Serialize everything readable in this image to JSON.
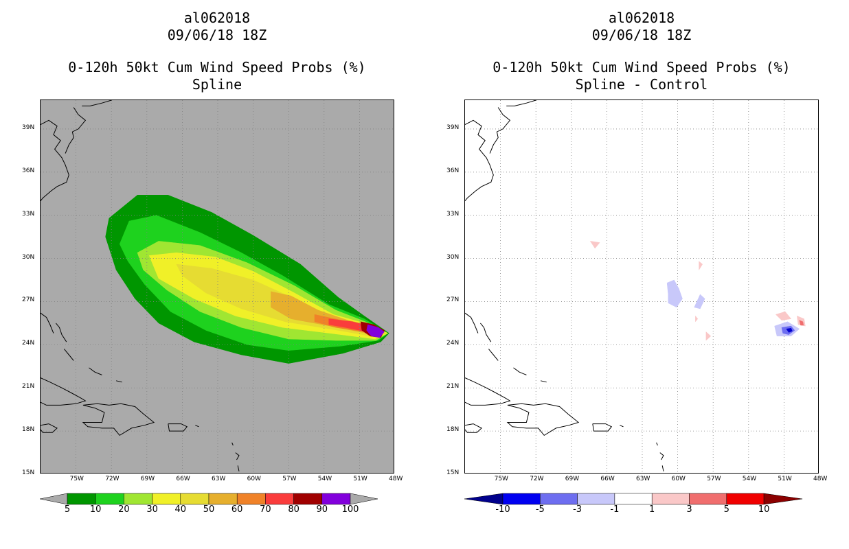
{
  "chart_data": [
    {
      "type": "heatmap",
      "storm_id": "al062018",
      "datetime": "09/06/18 18Z",
      "title": "0-120h 50kt Cum Wind Speed Probs (%)",
      "subtitle": "Spline",
      "background_color": "#aaaaaa",
      "xlim": [
        -78,
        -48
      ],
      "ylim": [
        15,
        41
      ],
      "x_ticks": [
        {
          "value": -75,
          "label": "75W"
        },
        {
          "value": -72,
          "label": "72W"
        },
        {
          "value": -69,
          "label": "69W"
        },
        {
          "value": -66,
          "label": "66W"
        },
        {
          "value": -63,
          "label": "63W"
        },
        {
          "value": -60,
          "label": "60W"
        },
        {
          "value": -57,
          "label": "57W"
        },
        {
          "value": -54,
          "label": "54W"
        },
        {
          "value": -51,
          "label": "51W"
        },
        {
          "value": -48,
          "label": "48W"
        }
      ],
      "y_ticks": [
        {
          "value": 15,
          "label": "15N"
        },
        {
          "value": 18,
          "label": "18N"
        },
        {
          "value": 21,
          "label": "21N"
        },
        {
          "value": 24,
          "label": "24N"
        },
        {
          "value": 27,
          "label": "27N"
        },
        {
          "value": 30,
          "label": "30N"
        },
        {
          "value": 33,
          "label": "33N"
        },
        {
          "value": 36,
          "label": "36N"
        },
        {
          "value": 39,
          "label": "39N"
        }
      ],
      "colorbar": {
        "labels": [
          "5",
          "10",
          "20",
          "30",
          "40",
          "50",
          "60",
          "70",
          "80",
          "90",
          "100"
        ],
        "colors": [
          "#aaaaaa",
          "#009600",
          "#1ed21e",
          "#a0e632",
          "#f0f028",
          "#e6dc32",
          "#e6af2d",
          "#f08228",
          "#fa3c3c",
          "#a00000",
          "#8200dc",
          "#aaaaaa"
        ]
      },
      "contour_levels": [
        {
          "level": 5,
          "color": "#009600",
          "points": [
            [
              -72.5,
              31.5
            ],
            [
              -72.2,
              32.8
            ],
            [
              -69.8,
              34.4
            ],
            [
              -67.2,
              34.4
            ],
            [
              -63.5,
              33.2
            ],
            [
              -60,
              31.6
            ],
            [
              -56,
              29.6
            ],
            [
              -52.8,
              27.3
            ],
            [
              -50.6,
              26
            ],
            [
              -48.5,
              24.8
            ],
            [
              -49.2,
              24.2
            ],
            [
              -52.4,
              23.4
            ],
            [
              -57,
              22.7
            ],
            [
              -61,
              23.3
            ],
            [
              -65,
              24.2
            ],
            [
              -68,
              25.5
            ],
            [
              -70,
              27.2
            ],
            [
              -71.6,
              29.2
            ]
          ]
        },
        {
          "level": 10,
          "color": "#1ed21e",
          "points": [
            [
              -71.3,
              31
            ],
            [
              -70.5,
              32.6
            ],
            [
              -68.2,
              33
            ],
            [
              -64.5,
              31.8
            ],
            [
              -61,
              30.4
            ],
            [
              -57.5,
              28.8
            ],
            [
              -53.6,
              26.8
            ],
            [
              -50.6,
              25.8
            ],
            [
              -48.6,
              24.8
            ],
            [
              -49.4,
              24.3
            ],
            [
              -52.6,
              23.9
            ],
            [
              -57,
              23.6
            ],
            [
              -60.5,
              24
            ],
            [
              -64,
              25
            ],
            [
              -67,
              26.3
            ],
            [
              -69.2,
              28.2
            ],
            [
              -70.6,
              29.8
            ]
          ]
        },
        {
          "level": 20,
          "color": "#a0e632",
          "points": [
            [
              -69.8,
              30.4
            ],
            [
              -68,
              31.2
            ],
            [
              -64.5,
              30.9
            ],
            [
              -60.5,
              29.7
            ],
            [
              -56.5,
              28.1
            ],
            [
              -53,
              26.4
            ],
            [
              -50.5,
              25.6
            ],
            [
              -48.6,
              24.8
            ],
            [
              -49.6,
              24.3
            ],
            [
              -53,
              24.3
            ],
            [
              -57,
              24.4
            ],
            [
              -61,
              25.2
            ],
            [
              -64.5,
              26.3
            ],
            [
              -67.3,
              27.8
            ],
            [
              -69.3,
              29.2
            ]
          ]
        },
        {
          "level": 30,
          "color": "#f0f028",
          "points": [
            [
              -68.8,
              30.2
            ],
            [
              -66.5,
              30.4
            ],
            [
              -63.2,
              30.1
            ],
            [
              -60,
              29.1
            ],
            [
              -56.5,
              27.6
            ],
            [
              -53.2,
              26.1
            ],
            [
              -50.6,
              25.5
            ],
            [
              -48.6,
              24.8
            ],
            [
              -49.7,
              24.4
            ],
            [
              -53.5,
              24.8
            ],
            [
              -57.5,
              25.2
            ],
            [
              -61.5,
              26
            ],
            [
              -65,
              27.2
            ],
            [
              -68,
              28.6
            ]
          ]
        },
        {
          "level": 40,
          "color": "#e6dc32",
          "points": [
            [
              -66.5,
              29.6
            ],
            [
              -63.5,
              29.3
            ],
            [
              -60,
              28.5
            ],
            [
              -56.5,
              27.2
            ],
            [
              -53.2,
              25.9
            ],
            [
              -50.7,
              25.4
            ],
            [
              -48.7,
              24.8
            ],
            [
              -50,
              24.6
            ],
            [
              -53.5,
              25.1
            ],
            [
              -57.3,
              25.6
            ],
            [
              -61,
              26.5
            ],
            [
              -64,
              27.6
            ],
            [
              -66,
              28.8
            ]
          ]
        },
        {
          "level": 50,
          "color": "#e6af2d",
          "points": [
            [
              -58.5,
              27.7
            ],
            [
              -56.8,
              27.4
            ],
            [
              -54.5,
              26.4
            ],
            [
              -52,
              25.7
            ],
            [
              -50.4,
              25.4
            ],
            [
              -48.8,
              24.9
            ],
            [
              -50.4,
              24.8
            ],
            [
              -53.5,
              25.3
            ],
            [
              -56.8,
              25.8
            ],
            [
              -58.5,
              26.6
            ]
          ]
        },
        {
          "level": 60,
          "color": "#f08228",
          "points": [
            [
              -54.8,
              26.1
            ],
            [
              -52.5,
              25.7
            ],
            [
              -50.6,
              25.4
            ],
            [
              -48.9,
              24.9
            ],
            [
              -50.6,
              24.9
            ],
            [
              -53,
              25.2
            ],
            [
              -54.8,
              25.6
            ]
          ]
        },
        {
          "level": 70,
          "color": "#fa3c3c",
          "points": [
            [
              -53.6,
              25.8
            ],
            [
              -51.6,
              25.6
            ],
            [
              -50.2,
              25.3
            ],
            [
              -48.9,
              24.9
            ],
            [
              -50.4,
              24.9
            ],
            [
              -52.2,
              25.2
            ],
            [
              -53.6,
              25.4
            ]
          ]
        },
        {
          "level": 80,
          "color": "#a00000",
          "points": [
            [
              -50.9,
              25.6
            ],
            [
              -49.8,
              25.4
            ],
            [
              -48.9,
              25
            ],
            [
              -49.2,
              24.5
            ],
            [
              -50.1,
              24.6
            ],
            [
              -50.8,
              25
            ]
          ]
        },
        {
          "level": 90,
          "color": "#8200dc",
          "points": [
            [
              -50.3,
              25.4
            ],
            [
              -49.4,
              25.2
            ],
            [
              -48.9,
              24.9
            ],
            [
              -49.3,
              24.5
            ],
            [
              -50,
              24.6
            ],
            [
              -50.4,
              25
            ]
          ]
        }
      ]
    },
    {
      "type": "heatmap",
      "storm_id": "al062018",
      "datetime": "09/06/18 18Z",
      "title": "0-120h 50kt Cum Wind Speed Probs (%)",
      "subtitle": "Spline - Control",
      "background_color": "#ffffff",
      "xlim": [
        -78,
        -48
      ],
      "ylim": [
        15,
        41
      ],
      "grid": true,
      "x_ticks": [
        {
          "value": -75,
          "label": "75W"
        },
        {
          "value": -72,
          "label": "72W"
        },
        {
          "value": -69,
          "label": "69W"
        },
        {
          "value": -66,
          "label": "66W"
        },
        {
          "value": -63,
          "label": "63W"
        },
        {
          "value": -60,
          "label": "60W"
        },
        {
          "value": -57,
          "label": "57W"
        },
        {
          "value": -54,
          "label": "54W"
        },
        {
          "value": -51,
          "label": "51W"
        },
        {
          "value": -48,
          "label": "48W"
        }
      ],
      "y_ticks": [
        {
          "value": 15,
          "label": "15N"
        },
        {
          "value": 18,
          "label": "18N"
        },
        {
          "value": 21,
          "label": "21N"
        },
        {
          "value": 24,
          "label": "24N"
        },
        {
          "value": 27,
          "label": "27N"
        },
        {
          "value": 30,
          "label": "30N"
        },
        {
          "value": 33,
          "label": "33N"
        },
        {
          "value": 36,
          "label": "36N"
        },
        {
          "value": 39,
          "label": "39N"
        }
      ],
      "colorbar": {
        "labels": [
          "-10",
          "-5",
          "-3",
          "-1",
          "1",
          "3",
          "5",
          "10"
        ],
        "colors": [
          "#00008c",
          "#0000f0",
          "#6e6ef0",
          "#c8c8fa",
          "#ffffff",
          "#fac8c8",
          "#f06e6e",
          "#f00000",
          "#8c0000"
        ]
      },
      "difference_patches": [
        {
          "value": -3,
          "color": "#c8c8fa",
          "points": [
            [
              -60.9,
              28.3
            ],
            [
              -60.3,
              28.5
            ],
            [
              -59.9,
              27.9
            ],
            [
              -59.6,
              27.2
            ],
            [
              -60.1,
              26.6
            ],
            [
              -60.8,
              26.9
            ],
            [
              -60.8,
              27.5
            ]
          ]
        },
        {
          "value": -3,
          "color": "#c8c8fa",
          "points": [
            [
              -58.1,
              27.5
            ],
            [
              -57.7,
              27.2
            ],
            [
              -58.1,
              26.5
            ],
            [
              -58.6,
              26.6
            ]
          ]
        },
        {
          "value": -3,
          "color": "#c8c8fa",
          "points": [
            [
              -51.8,
              25.3
            ],
            [
              -50.7,
              25.6
            ],
            [
              -49.7,
              25.1
            ],
            [
              -50.4,
              24.6
            ],
            [
              -51.6,
              24.6
            ]
          ]
        },
        {
          "value": -5,
          "color": "#6e6ef0",
          "points": [
            [
              -51.2,
              25.2
            ],
            [
              -50.4,
              25.3
            ],
            [
              -50.1,
              25
            ],
            [
              -50.6,
              24.7
            ],
            [
              -51.1,
              24.8
            ]
          ]
        },
        {
          "value": -10,
          "color": "#0000d0",
          "points": [
            [
              -50.8,
              25.1
            ],
            [
              -50.4,
              25.15
            ],
            [
              -50.3,
              24.95
            ],
            [
              -50.6,
              24.85
            ]
          ]
        },
        {
          "value": 3,
          "color": "#fac8c8",
          "points": [
            [
              -51.7,
              26.1
            ],
            [
              -50.9,
              26.3
            ],
            [
              -50.4,
              25.8
            ],
            [
              -51.2,
              25.7
            ]
          ]
        },
        {
          "value": 3,
          "color": "#fac8c8",
          "points": [
            [
              -49.9,
              26
            ],
            [
              -49.3,
              25.8
            ],
            [
              -49.2,
              25.3
            ],
            [
              -49.8,
              25.4
            ]
          ]
        },
        {
          "value": 5,
          "color": "#f06e6e",
          "points": [
            [
              -49.7,
              25.7
            ],
            [
              -49.4,
              25.6
            ],
            [
              -49.35,
              25.35
            ],
            [
              -49.6,
              25.35
            ]
          ]
        },
        {
          "value": 3,
          "color": "#fac8c8",
          "points": [
            [
              -67.4,
              31.2
            ],
            [
              -66.6,
              31.1
            ],
            [
              -67,
              30.7
            ]
          ]
        },
        {
          "value": 3,
          "color": "#fac8c8",
          "points": [
            [
              -58.2,
              29.8
            ],
            [
              -57.9,
              29.6
            ],
            [
              -58.2,
              29.2
            ]
          ]
        },
        {
          "value": 3,
          "color": "#fac8c8",
          "points": [
            [
              -57.6,
              24.9
            ],
            [
              -57.2,
              24.6
            ],
            [
              -57.6,
              24.3
            ]
          ]
        },
        {
          "value": 3,
          "color": "#fac8c8",
          "points": [
            [
              -58.5,
              26
            ],
            [
              -58.3,
              25.8
            ],
            [
              -58.5,
              25.6
            ]
          ]
        }
      ]
    }
  ]
}
